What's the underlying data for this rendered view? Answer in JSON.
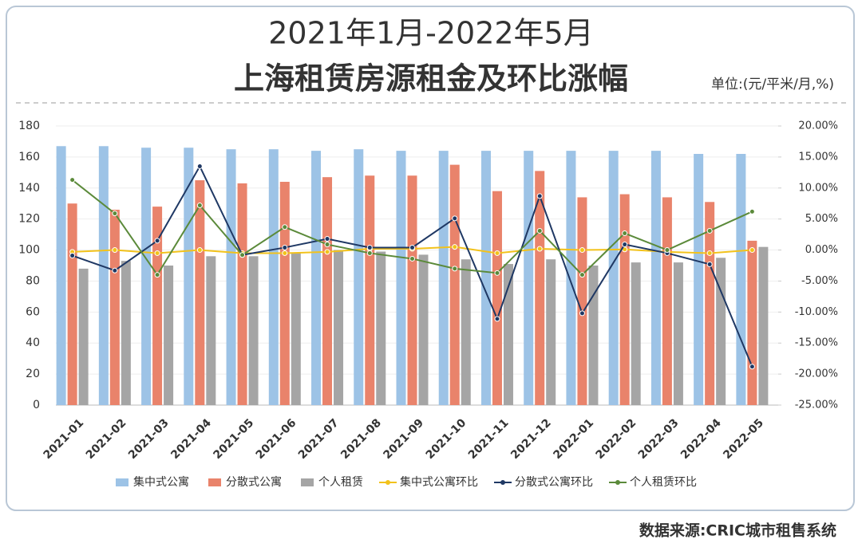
{
  "chart_data": {
    "type": "bar",
    "title": "2021年1月-2022年5月",
    "subtitle": "上海租赁房源租金及环比涨幅",
    "unit_label": "单位:(元/平米/月,%)",
    "source": "数据来源:CRIC城市租售系统",
    "categories": [
      "2021-01",
      "2021-02",
      "2021-03",
      "2021-04",
      "2021-05",
      "2021-06",
      "2021-07",
      "2021-08",
      "2021-09",
      "2021-10",
      "2021-11",
      "2021-12",
      "2022-01",
      "2022-02",
      "2022-03",
      "2022-04",
      "2022-05"
    ],
    "ylim": [
      0,
      180
    ],
    "yticks": [
      0,
      20,
      40,
      60,
      80,
      100,
      120,
      140,
      160,
      180
    ],
    "y2lim": [
      -25,
      20
    ],
    "y2ticks": [
      {
        "value": -25,
        "label": "-25.00%"
      },
      {
        "value": -20,
        "label": "-20.00%"
      },
      {
        "value": -15,
        "label": "-15.00%"
      },
      {
        "value": -10,
        "label": "-10.00%"
      },
      {
        "value": -5,
        "label": "-5.00%"
      },
      {
        "value": 0,
        "label": "0.00%"
      },
      {
        "value": 5,
        "label": "5.00%"
      },
      {
        "value": 10,
        "label": "10.00%"
      },
      {
        "value": 15,
        "label": "15.00%"
      },
      {
        "value": 20,
        "label": "20.00%"
      }
    ],
    "series": [
      {
        "name": "集中式公寓",
        "color": "#9dc3e6",
        "values": [
          167,
          167,
          166,
          166,
          165,
          165,
          164,
          165,
          164,
          164,
          164,
          164,
          164,
          164,
          164,
          162,
          162
        ]
      },
      {
        "name": "分散式公寓",
        "color": "#e9836b",
        "values": [
          130,
          126,
          128,
          145,
          143,
          144,
          147,
          148,
          148,
          155,
          138,
          151,
          134,
          136,
          134,
          131,
          106
        ]
      },
      {
        "name": "个人租赁",
        "color": "#a5a5a5",
        "values": [
          88,
          93,
          90,
          96,
          96,
          98,
          100,
          99,
          97,
          94,
          91,
          94,
          90,
          92,
          92,
          95,
          102
        ]
      },
      {
        "name": "集中式公寓环比",
        "type": "line",
        "axis": "y2",
        "color": "#f2c21b",
        "values": [
          -0.3,
          0,
          -0.5,
          0,
          -0.5,
          -0.5,
          -0.3,
          0.2,
          0.2,
          0.5,
          -0.5,
          0.2,
          0,
          0.1,
          -0.3,
          -0.5,
          0
        ]
      },
      {
        "name": "分散式公寓环比",
        "type": "line",
        "axis": "y2",
        "color": "#1f3864",
        "values": [
          -0.9,
          -3.3,
          1.5,
          13.5,
          -0.8,
          0.4,
          1.8,
          0.4,
          0.4,
          5.1,
          -11.1,
          8.7,
          -10.2,
          0.9,
          -0.5,
          -2.3,
          -18.8
        ]
      },
      {
        "name": "个人租赁环比",
        "type": "line",
        "axis": "y2",
        "color": "#5b8a3a",
        "values": [
          11.3,
          5.9,
          -4.0,
          7.2,
          -0.8,
          3.7,
          0.9,
          -0.5,
          -1.4,
          -3.0,
          -3.7,
          3.1,
          -4.0,
          2.7,
          0,
          3.1,
          6.2
        ]
      }
    ]
  }
}
